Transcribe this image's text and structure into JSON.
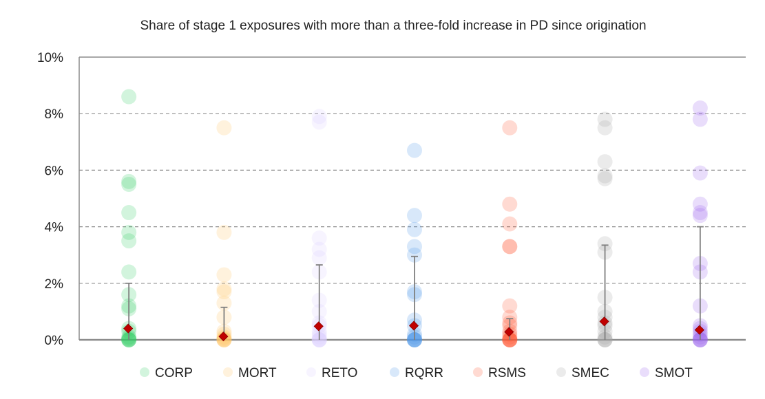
{
  "chart_data": {
    "type": "scatter",
    "title": "Share of stage 1 exposures with more than a three-fold increase in PD since origination",
    "xlabel": "",
    "ylabel": "",
    "ylim": [
      0,
      10
    ],
    "yticks": [
      0,
      2,
      4,
      6,
      8,
      10
    ],
    "ytick_labels": [
      "0%",
      "2%",
      "4%",
      "6%",
      "8%",
      "10%"
    ],
    "grid": "dashed horizontal at 2%, 4%, 6%, 8%",
    "legend_position": "bottom",
    "categories": [
      "CORP",
      "MORT",
      "RETO",
      "RQRR",
      "RSMS",
      "SMEC",
      "SMOT"
    ],
    "series": [
      {
        "name": "CORP",
        "color": "#33cc66",
        "values": [
          8.6,
          5.6,
          5.5,
          4.5,
          3.8,
          3.5,
          2.4,
          1.6,
          1.2,
          1.1,
          0.4,
          0.3,
          0.1,
          0.05,
          0,
          0,
          0,
          0
        ],
        "whisker": [
          0,
          2.0
        ],
        "marker": 0.4
      },
      {
        "name": "MORT",
        "color": "#ffc266",
        "values": [
          7.5,
          3.8,
          2.3,
          1.8,
          1.7,
          1.3,
          0.8,
          0.3,
          0.2,
          0.1,
          0.05,
          0,
          0,
          0,
          0
        ],
        "whisker": [
          0,
          1.15
        ],
        "marker": 0.12
      },
      {
        "name": "RETO",
        "color": "#d9ccff",
        "values": [
          7.9,
          7.7,
          3.6,
          3.2,
          2.9,
          2.4,
          1.4,
          1.0,
          0.6,
          0.5,
          0.3,
          0.2,
          0.1,
          0,
          0,
          0,
          0
        ],
        "whisker": [
          0,
          2.65
        ],
        "marker": 0.48
      },
      {
        "name": "RQRR",
        "color": "#4d94e6",
        "values": [
          6.7,
          4.4,
          3.9,
          3.3,
          3.0,
          1.7,
          1.6,
          0.7,
          0.5,
          0.2,
          0.1,
          0,
          0,
          0,
          0,
          0
        ],
        "whisker": [
          0,
          2.95
        ],
        "marker": 0.5
      },
      {
        "name": "RSMS",
        "color": "#ff5533",
        "values": [
          7.5,
          4.8,
          4.1,
          3.3,
          3.3,
          1.2,
          0.8,
          0.6,
          0.5,
          0.3,
          0.2,
          0.1,
          0,
          0,
          0,
          0,
          0
        ],
        "whisker": [
          0,
          0.75
        ],
        "marker": 0.28
      },
      {
        "name": "SMEC",
        "color": "#a6a6a6",
        "values": [
          7.8,
          7.5,
          6.3,
          5.8,
          5.7,
          3.4,
          3.1,
          1.5,
          1.0,
          0.8,
          0.6,
          0.5,
          0.3,
          0.1,
          0,
          0,
          0
        ],
        "whisker": [
          0,
          3.35
        ],
        "marker": 0.65
      },
      {
        "name": "SMOT",
        "color": "#9966ee",
        "values": [
          8.2,
          7.8,
          5.9,
          4.8,
          4.5,
          4.4,
          2.7,
          2.4,
          1.2,
          0.5,
          0.4,
          0.3,
          0.2,
          0.1,
          0,
          0,
          0,
          0
        ],
        "whisker": [
          0,
          4.0
        ],
        "marker": 0.35
      }
    ]
  }
}
